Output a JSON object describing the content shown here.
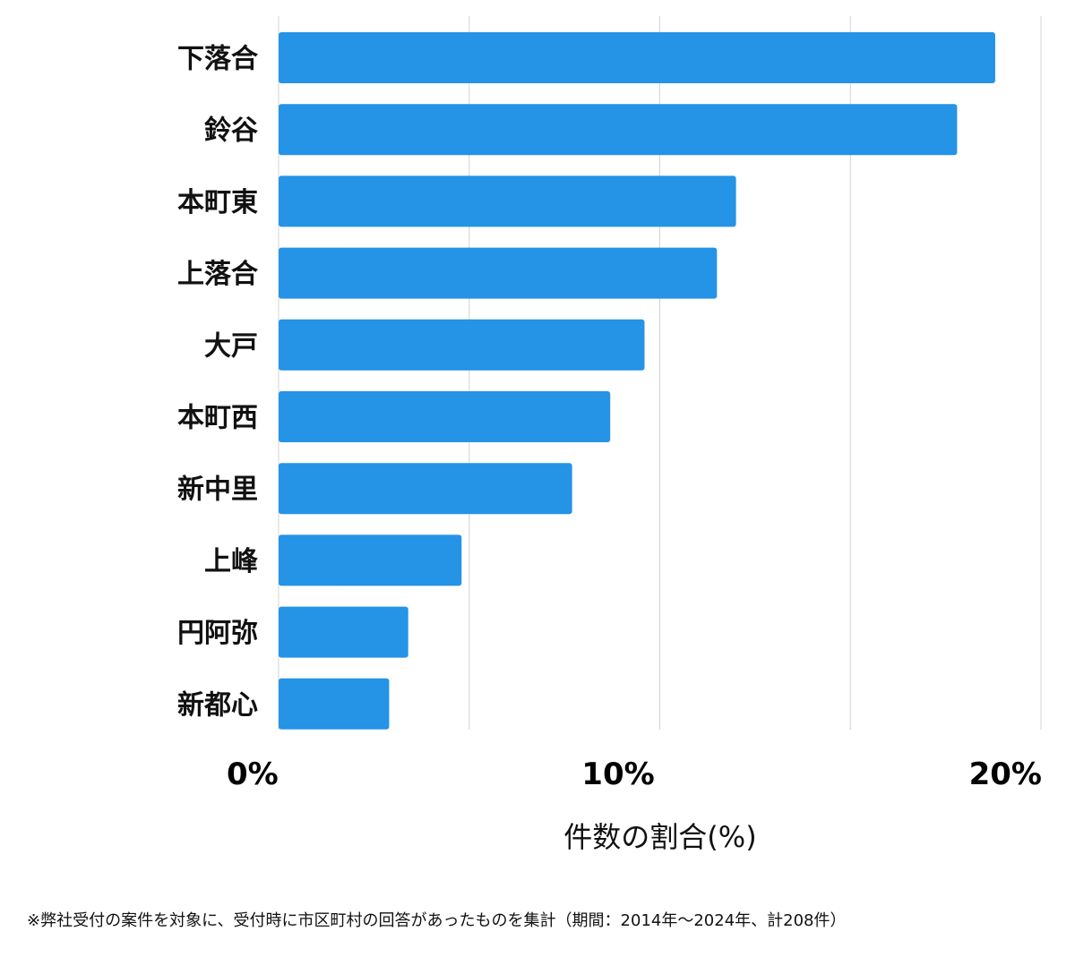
{
  "chart_data": {
    "type": "bar",
    "orientation": "horizontal",
    "categories": [
      "下落合",
      "鈴谷",
      "本町東",
      "上落合",
      "大戸",
      "本町西",
      "新中里",
      "上峰",
      "円阿弥",
      "新都心"
    ],
    "values": [
      18.8,
      17.8,
      12.0,
      11.5,
      9.6,
      8.7,
      7.7,
      4.8,
      3.4,
      2.9
    ],
    "xlabel": "件数の割合(%)",
    "xlim": [
      0,
      20
    ],
    "x_ticks": [
      0,
      10,
      20
    ],
    "x_tick_labels": [
      "0%",
      "10%",
      "20%"
    ],
    "grid": true,
    "gridline_count": 5,
    "bar_color": "#2593E6",
    "grid_color": "#D4D4D4"
  },
  "footnote": "※弊社受付の案件を対象に、受付時に市区町村の回答があったものを集計（期間：2014年〜2024年、計208件）"
}
